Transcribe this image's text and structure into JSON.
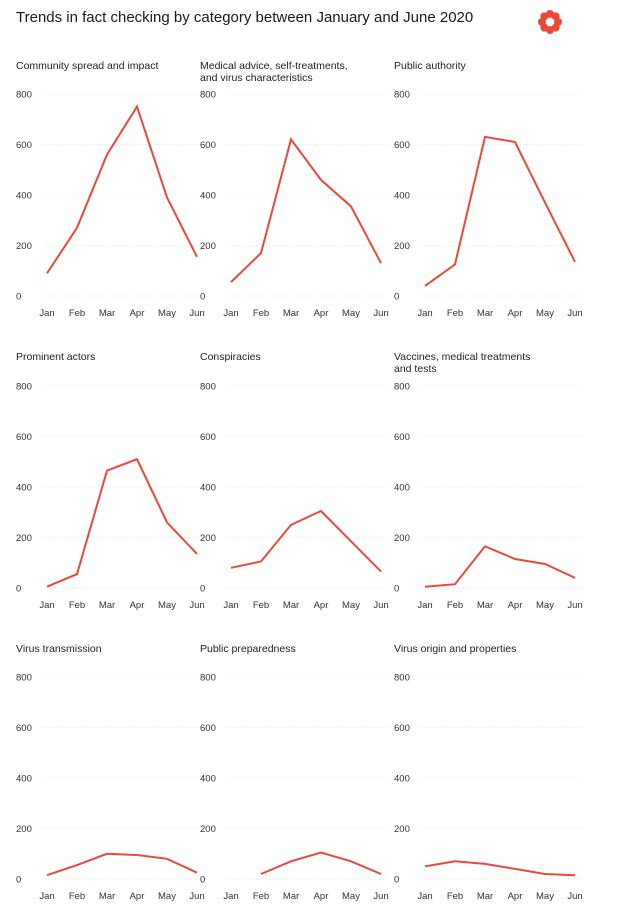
{
  "title": "Trends in fact checking by category between January and June 2020",
  "logo": {
    "icon": "red-asterisk-logo-icon",
    "color": "#e8493c"
  },
  "colors": {
    "line": "#e8493c"
  },
  "chart_data": [
    {
      "type": "line",
      "title_lines": [
        "Community spread and impact"
      ],
      "categories": [
        "Jan",
        "Feb",
        "Mar",
        "Apr",
        "May",
        "Jun"
      ],
      "values": [
        90,
        270,
        560,
        750,
        390,
        155
      ],
      "ylim": [
        0,
        800
      ],
      "yticks": [
        0,
        200,
        400,
        600,
        800
      ],
      "grid": true
    },
    {
      "type": "line",
      "title_lines": [
        "Medical advice, self-treatments,",
        "and virus characteristics"
      ],
      "categories": [
        "Jan",
        "Feb",
        "Mar",
        "Apr",
        "May",
        "Jun"
      ],
      "values": [
        55,
        170,
        620,
        460,
        355,
        130
      ],
      "ylim": [
        0,
        800
      ],
      "yticks": [
        0,
        200,
        400,
        600,
        800
      ],
      "grid": true
    },
    {
      "type": "line",
      "title_lines": [
        "Public authority"
      ],
      "categories": [
        "Jan",
        "Feb",
        "Mar",
        "Apr",
        "May",
        "Jun"
      ],
      "values": [
        40,
        125,
        630,
        610,
        370,
        135
      ],
      "ylim": [
        0,
        800
      ],
      "yticks": [
        0,
        200,
        400,
        600,
        800
      ],
      "grid": true
    },
    {
      "type": "line",
      "title_lines": [
        "Prominent actors"
      ],
      "categories": [
        "Jan",
        "Feb",
        "Mar",
        "Apr",
        "May",
        "Jun"
      ],
      "values": [
        5,
        55,
        465,
        510,
        260,
        135
      ],
      "ylim": [
        0,
        800
      ],
      "yticks": [
        0,
        200,
        400,
        600,
        800
      ],
      "grid": true
    },
    {
      "type": "line",
      "title_lines": [
        "Conspiracies"
      ],
      "categories": [
        "Jan",
        "Feb",
        "Mar",
        "Apr",
        "May",
        "Jun"
      ],
      "values": [
        80,
        105,
        250,
        305,
        185,
        65
      ],
      "ylim": [
        0,
        800
      ],
      "yticks": [
        0,
        200,
        400,
        600,
        800
      ],
      "grid": true
    },
    {
      "type": "line",
      "title_lines": [
        "Vaccines, medical treatments",
        "and tests"
      ],
      "categories": [
        "Jan",
        "Feb",
        "Mar",
        "Apr",
        "May",
        "Jun"
      ],
      "values": [
        5,
        15,
        165,
        115,
        95,
        40
      ],
      "ylim": [
        0,
        800
      ],
      "yticks": [
        0,
        200,
        400,
        600,
        800
      ],
      "grid": true
    },
    {
      "type": "line",
      "title_lines": [
        "Virus transmission"
      ],
      "categories": [
        "Jan",
        "Feb",
        "Mar",
        "Apr",
        "May",
        "Jun"
      ],
      "values": [
        15,
        55,
        100,
        95,
        80,
        25
      ],
      "ylim": [
        0,
        800
      ],
      "yticks": [
        0,
        200,
        400,
        600,
        800
      ],
      "grid": true
    },
    {
      "type": "line",
      "title_lines": [
        "Public preparedness"
      ],
      "categories": [
        "Jan",
        "Feb",
        "Mar",
        "Apr",
        "May",
        "Jun"
      ],
      "values": [
        null,
        20,
        70,
        105,
        70,
        20
      ],
      "ylim": [
        0,
        800
      ],
      "yticks": [
        0,
        200,
        400,
        600,
        800
      ],
      "grid": true
    },
    {
      "type": "line",
      "title_lines": [
        "Virus origin and properties"
      ],
      "categories": [
        "Jan",
        "Feb",
        "Mar",
        "Apr",
        "May",
        "Jun"
      ],
      "values": [
        50,
        70,
        60,
        40,
        20,
        15
      ],
      "ylim": [
        0,
        800
      ],
      "yticks": [
        0,
        200,
        400,
        600,
        800
      ],
      "grid": true
    }
  ]
}
